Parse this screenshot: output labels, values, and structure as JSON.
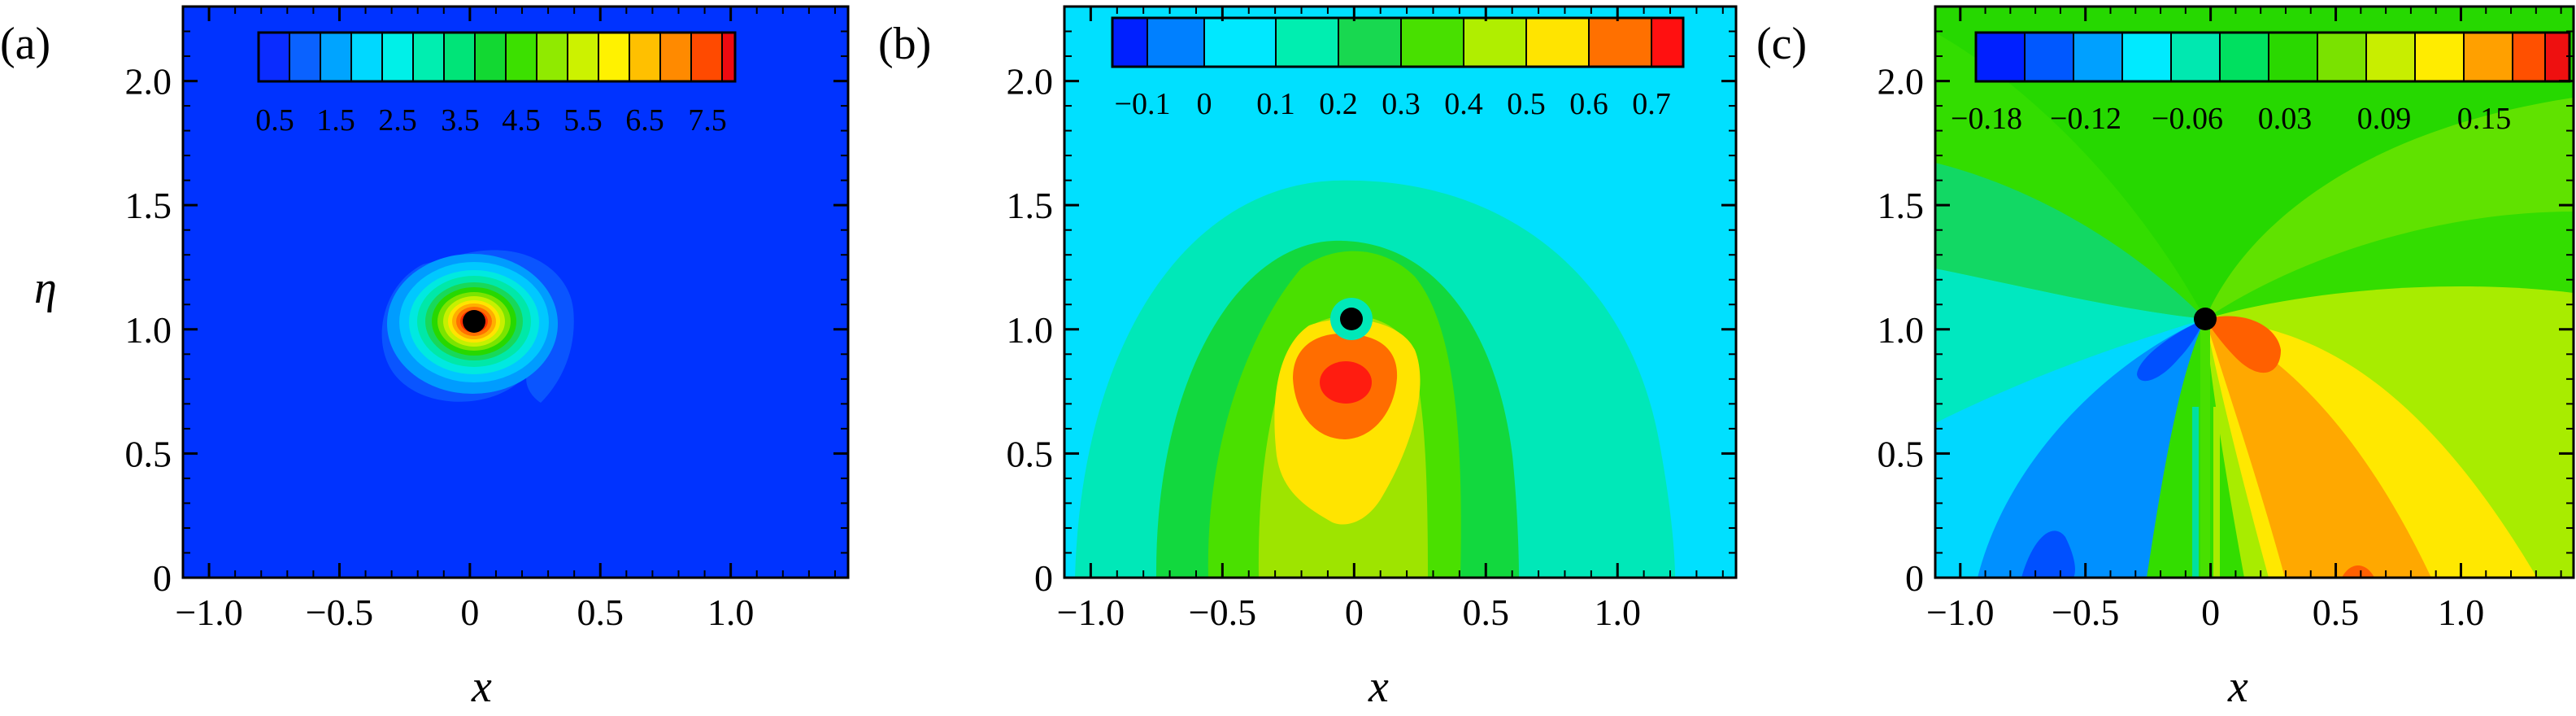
{
  "chart_data": [
    {
      "type": "heatmap",
      "panel_label": "(a)",
      "xlabel": "x",
      "ylabel": "η",
      "x_ticks": [
        "−1.0",
        "−0.5",
        "0",
        "0.5",
        "1.0"
      ],
      "y_ticks": [
        "0",
        "0.5",
        "1.0",
        "1.5",
        "2.0"
      ],
      "xlim": [
        -1.1,
        1.45
      ],
      "ylim": [
        0,
        2.3
      ],
      "grid": false,
      "colorbar": {
        "placement": "top-inside",
        "levels": 16,
        "labels": [
          "0.5",
          "1.5",
          "2.5",
          "3.5",
          "4.5",
          "5.5",
          "6.5",
          "7.5"
        ]
      },
      "background_color": "#0033ff",
      "features": [
        {
          "kind": "vortex",
          "x": 0.07,
          "y": 1.05,
          "outer_radius": 0.35,
          "peak_value": 8.0
        },
        {
          "kind": "marker",
          "x": 0.07,
          "y": 1.05,
          "color": "#000000"
        }
      ]
    },
    {
      "type": "heatmap",
      "panel_label": "(b)",
      "xlabel": "x",
      "ylabel": "",
      "x_ticks": [
        "−1.0",
        "−0.5",
        "0",
        "0.5",
        "1.0"
      ],
      "y_ticks": [
        "0",
        "0.5",
        "1.0",
        "1.5",
        "2.0"
      ],
      "xlim": [
        -1.1,
        1.45
      ],
      "ylim": [
        0,
        2.3
      ],
      "grid": false,
      "colorbar": {
        "placement": "top-inside",
        "levels": 9,
        "labels": [
          "−0.1",
          "0",
          "0.1",
          "0.2",
          "0.3",
          "0.4",
          "0.5",
          "0.6",
          "0.7"
        ]
      },
      "background_color": "#00e0ff",
      "features": [
        {
          "kind": "dome",
          "x_center": 0.08,
          "value_min": 0.1,
          "value_max": 0.7,
          "peak_x": 0.1,
          "peak_y": 0.78
        },
        {
          "kind": "marker",
          "x": 0.07,
          "y": 1.05,
          "color": "#000000"
        }
      ]
    },
    {
      "type": "heatmap",
      "panel_label": "(c)",
      "xlabel": "x",
      "ylabel": "",
      "x_ticks": [
        "−1.0",
        "−0.5",
        "0",
        "0.5",
        "1.0"
      ],
      "y_ticks": [
        "0",
        "0.5",
        "1.0",
        "1.5",
        "2.0"
      ],
      "xlim": [
        -1.1,
        1.45
      ],
      "ylim": [
        0,
        2.3
      ],
      "grid": false,
      "colorbar": {
        "placement": "top-inside",
        "levels": 12,
        "labels": [
          "−0.18",
          "−0.12",
          "−0.06",
          "0.03",
          "0.09",
          "0.15"
        ]
      },
      "background_color": "#33dd00",
      "features": [
        {
          "kind": "dipole",
          "x": 0.07,
          "y": 1.05,
          "negative_side": "left",
          "positive_side": "right"
        },
        {
          "kind": "marker",
          "x": 0.07,
          "y": 1.05,
          "color": "#000000"
        }
      ]
    }
  ]
}
